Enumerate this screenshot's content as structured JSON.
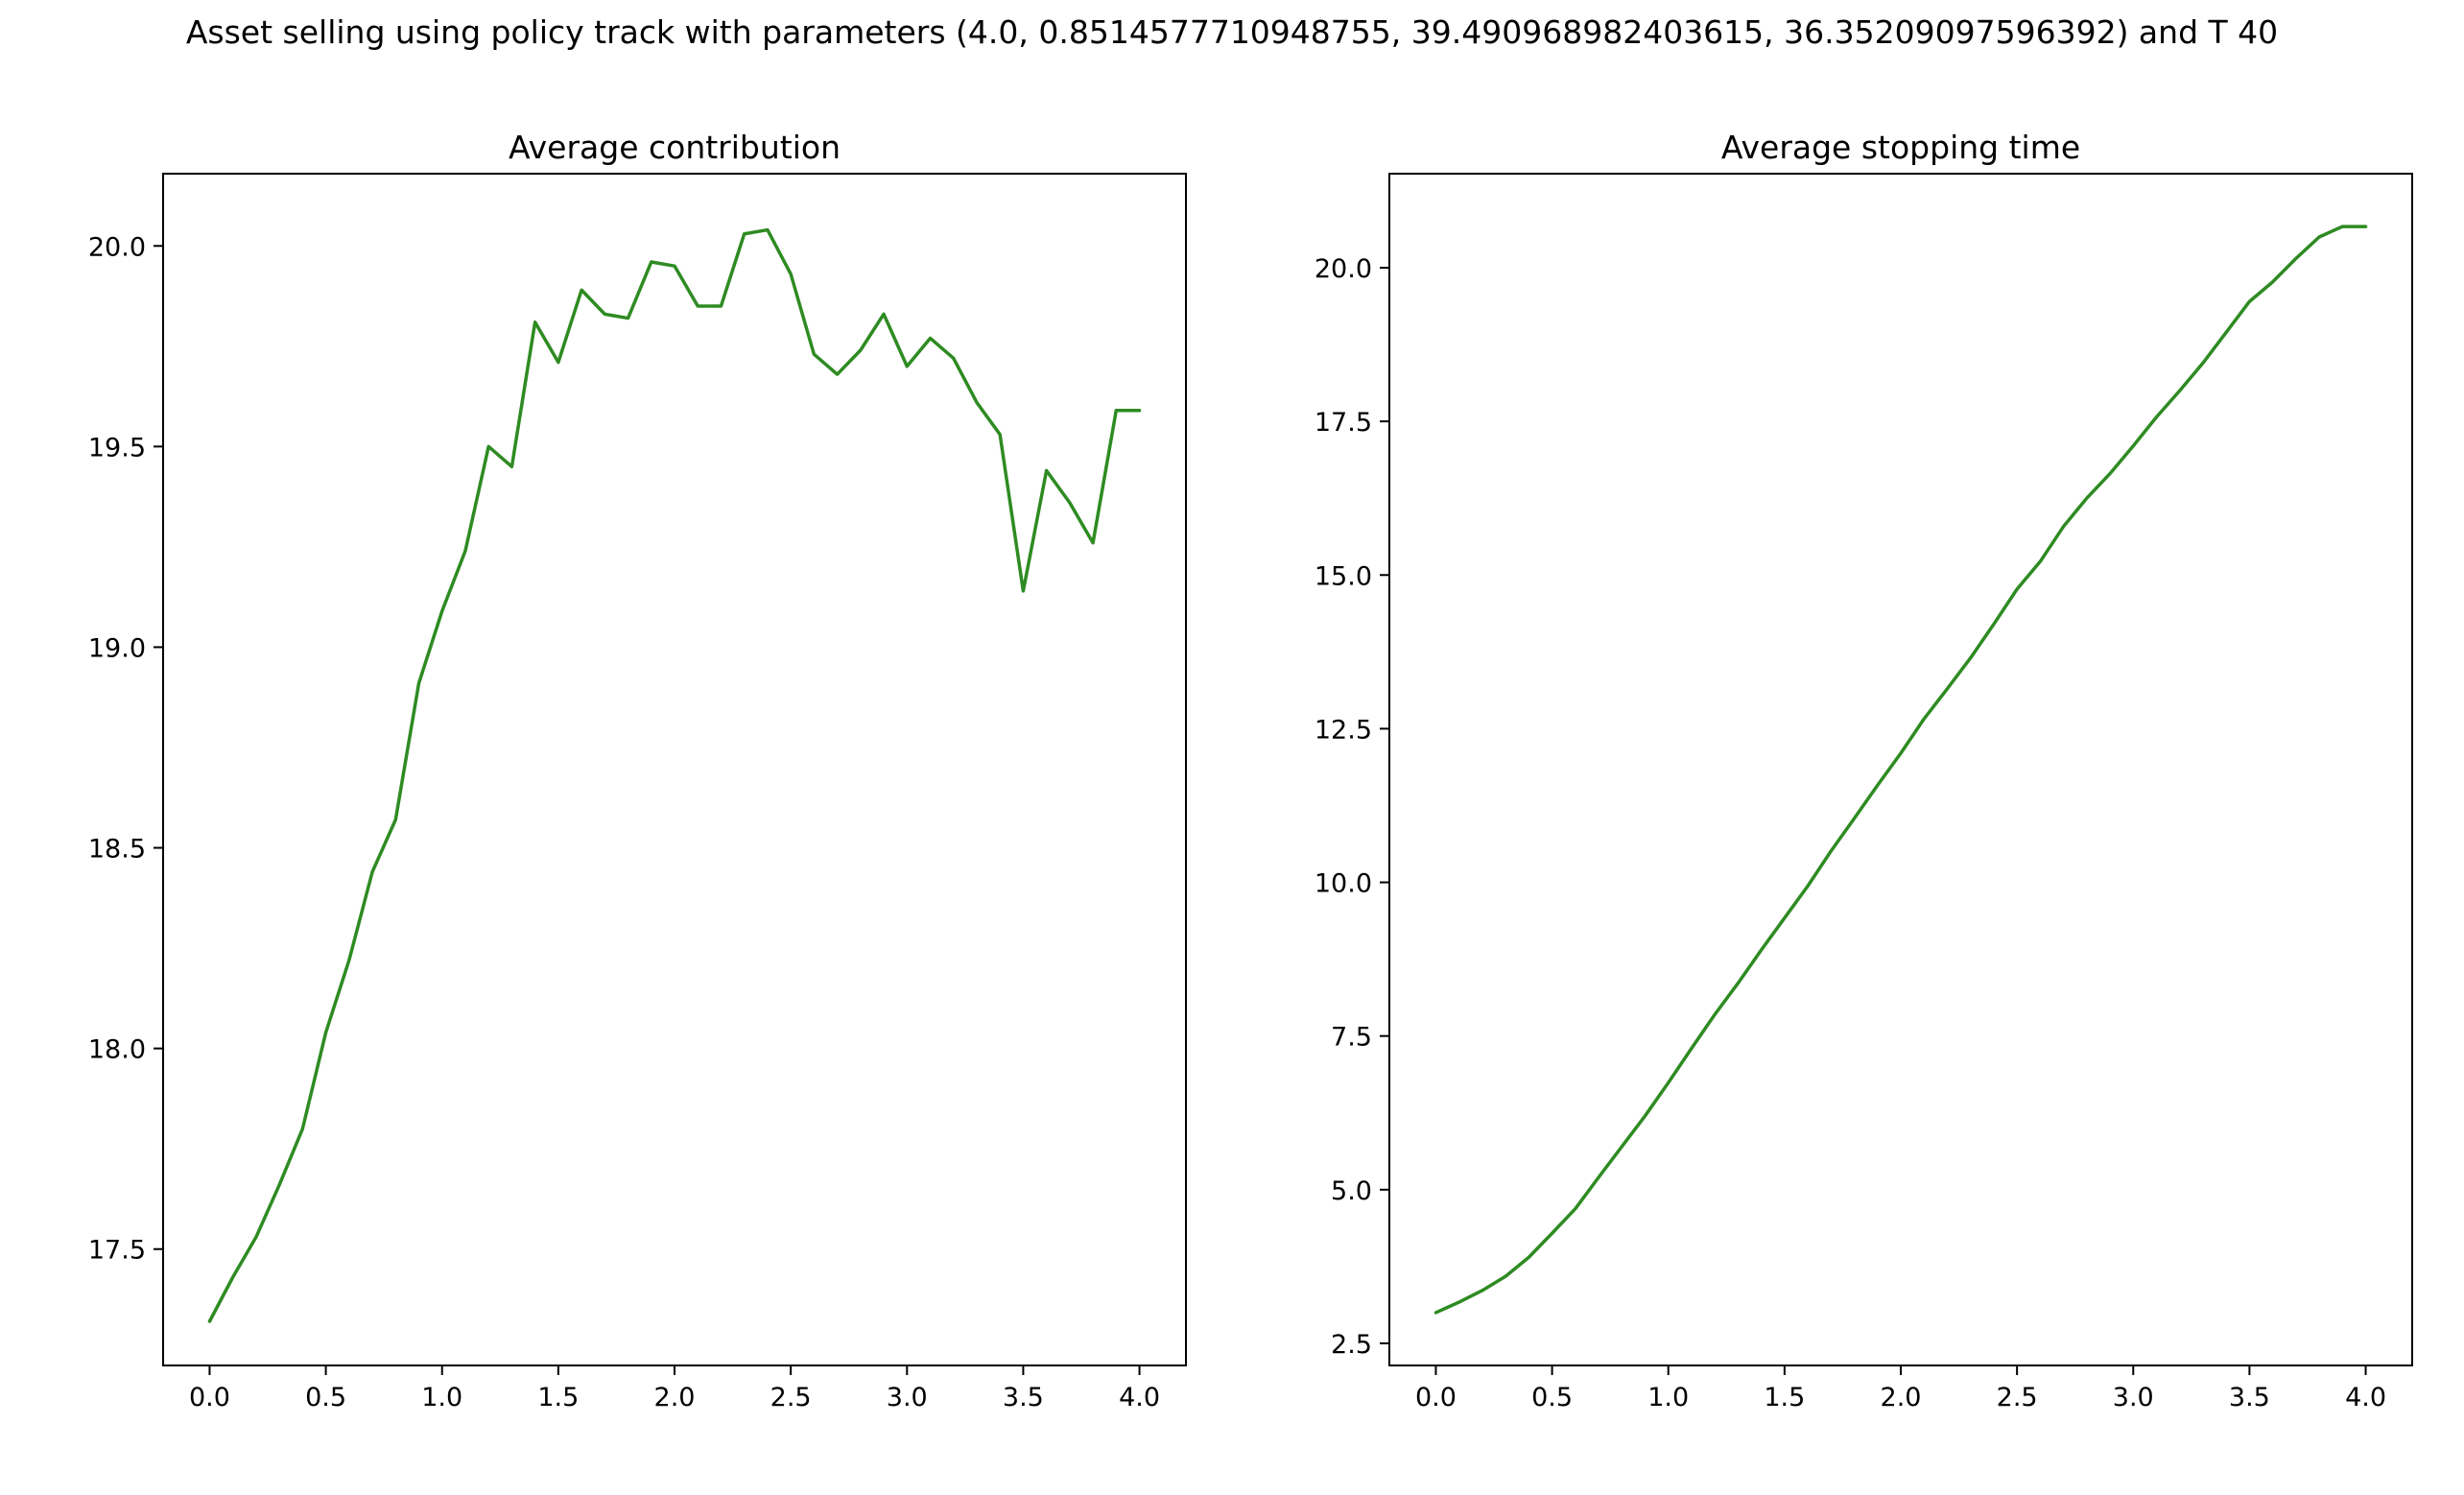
{
  "figure": {
    "title": "Asset selling using policy track with parameters (4.0, 0.8514577710948755, 39.490968982403615, 36.35209097596392) and T 40"
  },
  "chart_data": [
    {
      "type": "line",
      "title": "Average contribution",
      "xlabel": "",
      "ylabel": "",
      "xlim": [
        -0.2,
        4.2
      ],
      "ylim": [
        17.21,
        20.18
      ],
      "xticks": [
        0.0,
        0.5,
        1.0,
        1.5,
        2.0,
        2.5,
        3.0,
        3.5,
        4.0
      ],
      "xtick_labels": [
        "0.0",
        "0.5",
        "1.0",
        "1.5",
        "2.0",
        "2.5",
        "3.0",
        "3.5",
        "4.0"
      ],
      "yticks": [
        17.5,
        18.0,
        18.5,
        19.0,
        19.5,
        20.0
      ],
      "ytick_labels": [
        "17.5",
        "18.0",
        "18.5",
        "19.0",
        "19.5",
        "20.0"
      ],
      "grid": false,
      "series": [
        {
          "color": "#2e8b22",
          "x": [
            0.0,
            0.1,
            0.2,
            0.3,
            0.4,
            0.5,
            0.6,
            0.7,
            0.8,
            0.9,
            1.0,
            1.1,
            1.2,
            1.3,
            1.4,
            1.5,
            1.6,
            1.7,
            1.8,
            1.9,
            2.0,
            2.1,
            2.2,
            2.3,
            2.4,
            2.5,
            2.6,
            2.7,
            2.8,
            2.9,
            3.0,
            3.1,
            3.2,
            3.3,
            3.4,
            3.5,
            3.6,
            3.7,
            3.8,
            3.9,
            4.0
          ],
          "y": [
            17.32,
            17.43,
            17.53,
            17.66,
            17.8,
            18.04,
            18.22,
            18.44,
            18.57,
            18.91,
            19.09,
            19.24,
            19.5,
            19.45,
            19.81,
            19.71,
            19.89,
            19.83,
            19.82,
            19.96,
            19.95,
            19.85,
            19.85,
            20.03,
            20.04,
            19.93,
            19.73,
            19.68,
            19.74,
            19.83,
            19.7,
            19.77,
            19.72,
            19.61,
            19.53,
            19.14,
            19.44,
            19.36,
            19.26,
            19.59,
            19.59
          ]
        }
      ]
    },
    {
      "type": "line",
      "title": "Average stopping time",
      "xlabel": "",
      "ylabel": "",
      "xlim": [
        -0.2,
        4.2
      ],
      "ylim": [
        2.14,
        21.53
      ],
      "xticks": [
        0.0,
        0.5,
        1.0,
        1.5,
        2.0,
        2.5,
        3.0,
        3.5,
        4.0
      ],
      "xtick_labels": [
        "0.0",
        "0.5",
        "1.0",
        "1.5",
        "2.0",
        "2.5",
        "3.0",
        "3.5",
        "4.0"
      ],
      "yticks": [
        2.5,
        5.0,
        7.5,
        10.0,
        12.5,
        15.0,
        17.5,
        20.0
      ],
      "ytick_labels": [
        "2.5",
        "5.0",
        "7.5",
        "10.0",
        "12.5",
        "15.0",
        "17.5",
        "20.0"
      ],
      "grid": false,
      "series": [
        {
          "color": "#2e8b22",
          "x": [
            0.0,
            0.1,
            0.2,
            0.3,
            0.4,
            0.5,
            0.6,
            0.7,
            0.8,
            0.9,
            1.0,
            1.1,
            1.2,
            1.3,
            1.4,
            1.5,
            1.6,
            1.7,
            1.8,
            1.9,
            2.0,
            2.1,
            2.2,
            2.3,
            2.4,
            2.5,
            2.6,
            2.7,
            2.8,
            2.9,
            3.0,
            3.1,
            3.2,
            3.3,
            3.4,
            3.5,
            3.6,
            3.7,
            3.8,
            3.9,
            4.0
          ],
          "y": [
            3.0,
            3.17,
            3.36,
            3.59,
            3.9,
            4.29,
            4.69,
            5.2,
            5.7,
            6.2,
            6.74,
            7.3,
            7.85,
            8.36,
            8.9,
            9.42,
            9.94,
            10.51,
            11.04,
            11.58,
            12.1,
            12.66,
            13.15,
            13.65,
            14.2,
            14.77,
            15.22,
            15.79,
            16.25,
            16.65,
            17.1,
            17.57,
            18.0,
            18.45,
            18.95,
            19.45,
            19.77,
            20.15,
            20.5,
            20.67,
            20.67
          ]
        }
      ]
    }
  ]
}
